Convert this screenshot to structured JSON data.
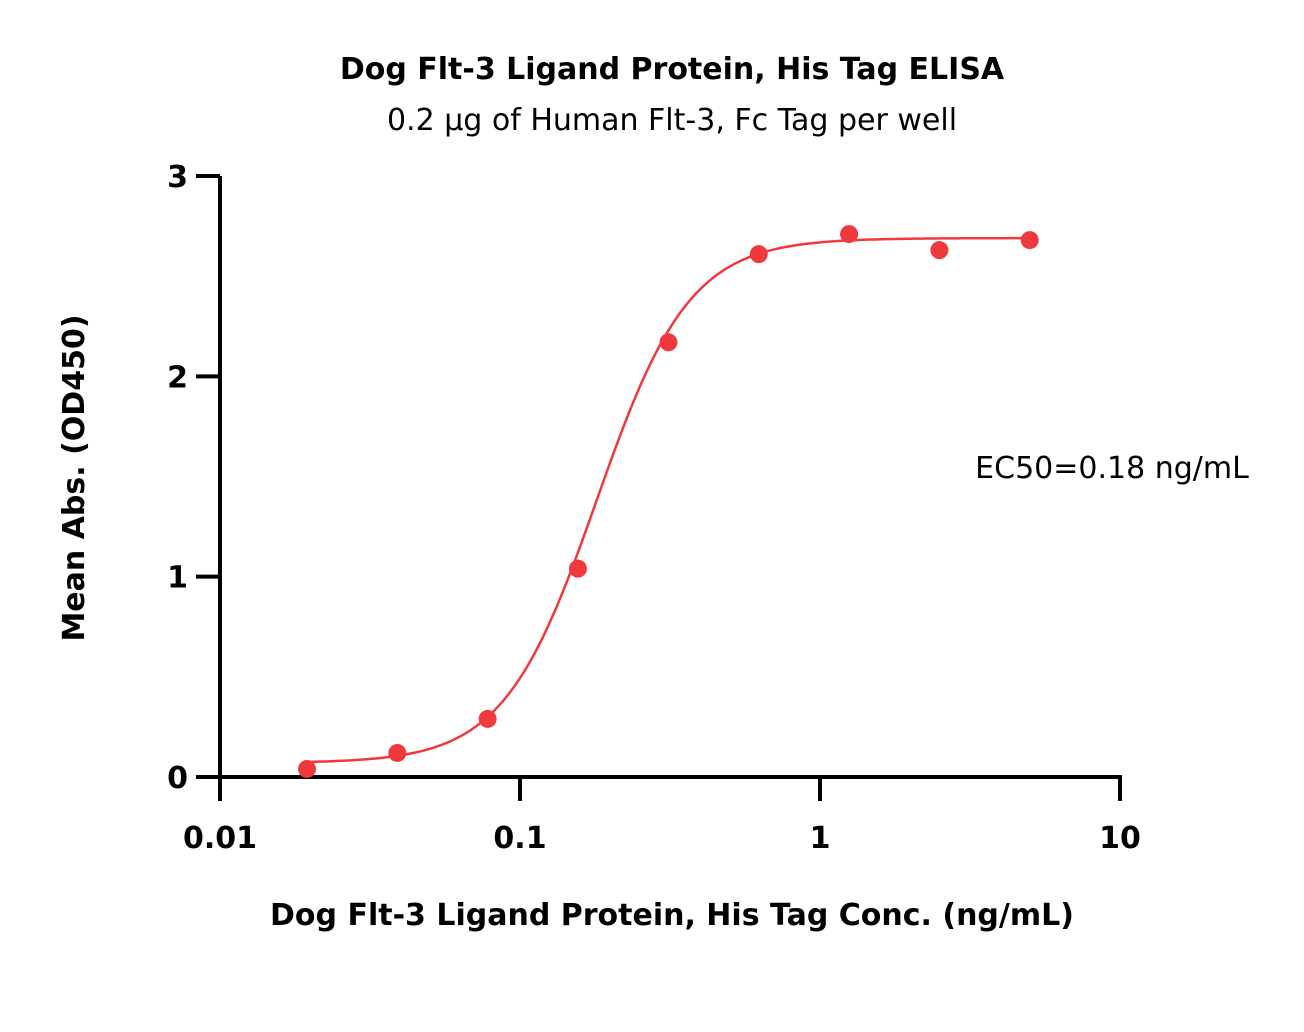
{
  "chart_data": {
    "type": "scatter",
    "title": "Dog Flt-3 Ligand Protein, His Tag ELISA",
    "subtitle": "0.2 µg of Human Flt-3, Fc Tag per well",
    "xlabel": "Dog Flt-3 Ligand Protein, His Tag Conc. (ng/mL)",
    "ylabel": "Mean Abs. (OD450)",
    "xscale": "log",
    "xlim": [
      0.01,
      10
    ],
    "ylim": [
      0,
      3
    ],
    "xticks": [
      {
        "value": 0.01,
        "label": "0.01"
      },
      {
        "value": 0.1,
        "label": "0.1"
      },
      {
        "value": 1,
        "label": "1"
      },
      {
        "value": 10,
        "label": "10"
      }
    ],
    "yticks": [
      {
        "value": 0,
        "label": "0"
      },
      {
        "value": 1,
        "label": "1"
      },
      {
        "value": 2,
        "label": "2"
      },
      {
        "value": 3,
        "label": "3"
      }
    ],
    "grid": false,
    "series": [
      {
        "color": "#f0393c",
        "points": [
          {
            "x": 0.0195,
            "y": 0.04
          },
          {
            "x": 0.039,
            "y": 0.12
          },
          {
            "x": 0.078,
            "y": 0.29
          },
          {
            "x": 0.156,
            "y": 1.04
          },
          {
            "x": 0.3125,
            "y": 2.17
          },
          {
            "x": 0.625,
            "y": 2.61
          },
          {
            "x": 1.25,
            "y": 2.71
          },
          {
            "x": 2.5,
            "y": 2.63
          },
          {
            "x": 5,
            "y": 2.68
          }
        ],
        "fit": {
          "bottom": 0.07,
          "top": 2.69,
          "ec50": 0.18,
          "hill": 2.8
        }
      }
    ],
    "annotations": [
      {
        "text": "EC50=0.18 ng/mL"
      }
    ]
  }
}
